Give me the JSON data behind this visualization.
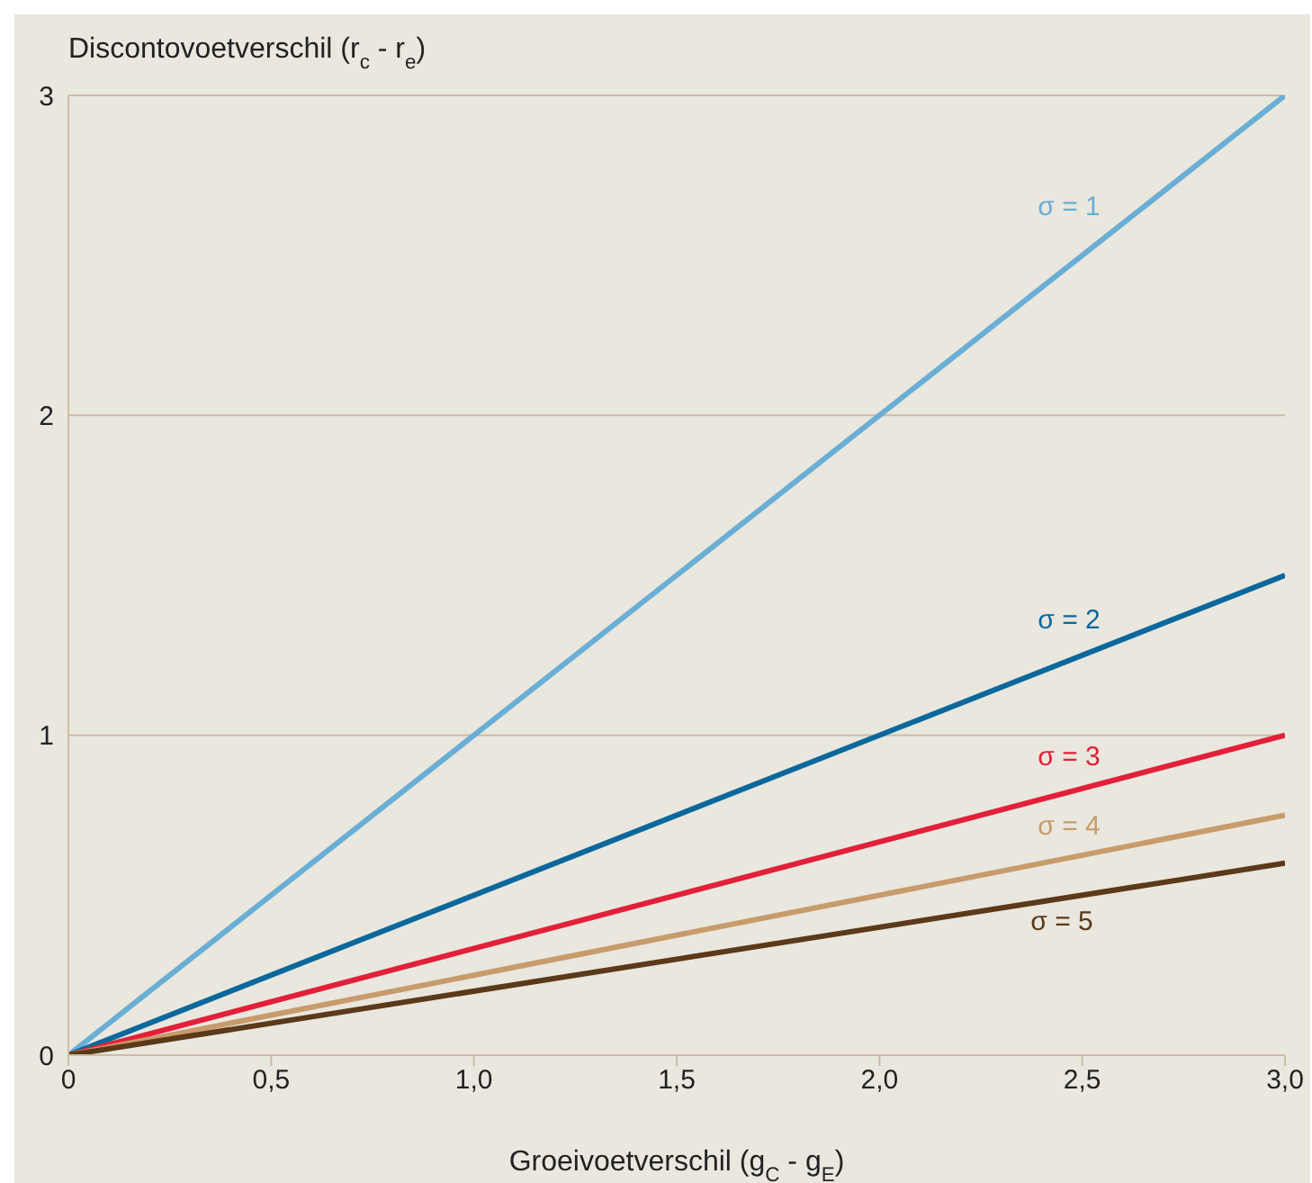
{
  "chart_data": {
    "type": "line",
    "xlabel": "Groeivoetverschil (g$_{C}$ - g$_{E}$)",
    "ylabel": "Discontovoetverschil (r$_{c}$ - r$_{e}$)",
    "x": [
      0,
      3
    ],
    "series": [
      {
        "name": "σ = 1",
        "color": "#6aaed6",
        "values": [
          0,
          3
        ]
      },
      {
        "name": "σ = 2",
        "color": "#0b689c",
        "values": [
          0,
          1.5
        ]
      },
      {
        "name": "σ = 3",
        "color": "#e2203a",
        "values": [
          0,
          1
        ]
      },
      {
        "name": "σ = 4",
        "color": "#c89b6c",
        "values": [
          0,
          0.75
        ]
      },
      {
        "name": "σ = 5",
        "color": "#5c3919",
        "values": [
          0,
          0.6
        ]
      }
    ],
    "xlim": [
      0,
      3
    ],
    "xticks": [
      0,
      {
        "value": 0.5,
        "label": "0,5"
      },
      {
        "value": 1,
        "label": "1,0"
      },
      {
        "value": 1.5,
        "label": "1,5"
      },
      {
        "value": 2,
        "label": "2,0"
      },
      {
        "value": 2.5,
        "label": "2,5"
      },
      {
        "value": 3,
        "label": "3,0"
      }
    ],
    "ylim": [
      0,
      3
    ],
    "yticks": [
      0,
      1,
      2,
      3
    ],
    "grid": "y",
    "legend": false,
    "marker": "none",
    "line_style": "solid"
  }
}
